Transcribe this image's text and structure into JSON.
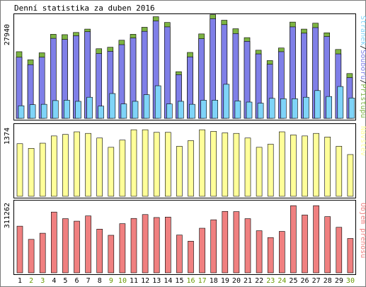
{
  "chart_data": {
    "type": "bar",
    "title": "Denní statistika za duben 2016",
    "categories": [
      "1",
      "2",
      "3",
      "4",
      "5",
      "6",
      "7",
      "8",
      "9",
      "10",
      "11",
      "12",
      "13",
      "14",
      "15",
      "16",
      "17",
      "18",
      "19",
      "20",
      "21",
      "22",
      "23",
      "24",
      "25",
      "26",
      "27",
      "28",
      "29",
      "30"
    ],
    "weekend_days": [
      "2",
      "3",
      "9",
      "10",
      "16",
      "17",
      "23",
      "24",
      "30"
    ],
    "colors": {
      "frame": "#000000",
      "pristupu": "#7cb342",
      "soubory": "#7f7fe8",
      "stranek": "#7fd4f8",
      "navstev": "#ffff99",
      "objem": "#f08080",
      "weekday_label": "#000000",
      "weekend_label": "#669900"
    },
    "panels": [
      {
        "id": "top",
        "ylabel_value": "27940",
        "ymax": 27940,
        "legend": [
          {
            "text": "Stránek",
            "color": "#7fd4f8"
          },
          {
            "text": "/",
            "color": "#000000"
          },
          {
            "text": "Souborů",
            "color": "#7f7fe8"
          },
          {
            "text": "/",
            "color": "#000000"
          },
          {
            "text": "Přístupů",
            "color": "#7cb342"
          }
        ],
        "series": [
          {
            "name": "Přístupů",
            "values": [
              18000,
              15800,
              17700,
              22700,
              22600,
              23200,
              24100,
              18800,
              19200,
              21100,
              22700,
              24600,
              27450,
              25900,
              12600,
              17800,
              22800,
              28000,
              26500,
              24200,
              21800,
              18400,
              15600,
              19000,
              26000,
              24100,
              25700,
              23100,
              18600,
              12100
            ]
          },
          {
            "name": "Souborů",
            "values": [
              16500,
              14500,
              16500,
              21600,
              21300,
              22300,
              23400,
              17500,
              18100,
              19900,
              21700,
              23500,
              26300,
              24700,
              11800,
              16600,
              21500,
              26900,
              25300,
              22900,
              20800,
              17400,
              14600,
              18000,
              24700,
              23000,
              24500,
              22100,
              17400,
              11000
            ]
          },
          {
            "name": "Stránek",
            "values": [
              3400,
              3700,
              3800,
              4800,
              4900,
              4600,
              5700,
              3300,
              6700,
              3900,
              4600,
              6400,
              8800,
              3900,
              4600,
              3800,
              4900,
              4900,
              9200,
              4700,
              4400,
              4100,
              5400,
              5300,
              5300,
              5700,
              7500,
              5900,
              8600,
              5500
            ]
          }
        ]
      },
      {
        "id": "middle",
        "ylabel_value": "1374",
        "ymax": 1374,
        "legend": [
          {
            "text": "Návštěv",
            "color": "#ffff99"
          }
        ],
        "series": [
          {
            "name": "Návštěv",
            "values": [
              1020,
              930,
              1030,
              1170,
              1200,
              1250,
              1220,
              1130,
              950,
              1090,
              1290,
              1290,
              1240,
              1240,
              970,
              1080,
              1290,
              1260,
              1230,
              1220,
              1130,
              950,
              1010,
              1250,
              1190,
              1170,
              1220,
              1150,
              970,
              810
            ]
          }
        ]
      },
      {
        "id": "bottom",
        "ylabel_value": "311262",
        "ymax": 311262,
        "legend": [
          {
            "text": "Objem přenosu",
            "color": "#f08080"
          }
        ],
        "series": [
          {
            "name": "Objem přenosu",
            "values": [
              205000,
              147000,
              174000,
              267000,
              238000,
              227000,
              250000,
              192000,
              165000,
              216000,
              239000,
              256000,
              243000,
              245000,
              166000,
              139000,
              196000,
              233000,
              270000,
              269000,
              238000,
              185000,
              155000,
              182000,
              295000,
              254000,
              295000,
              247000,
              200000,
              151000
            ]
          }
        ]
      }
    ]
  }
}
